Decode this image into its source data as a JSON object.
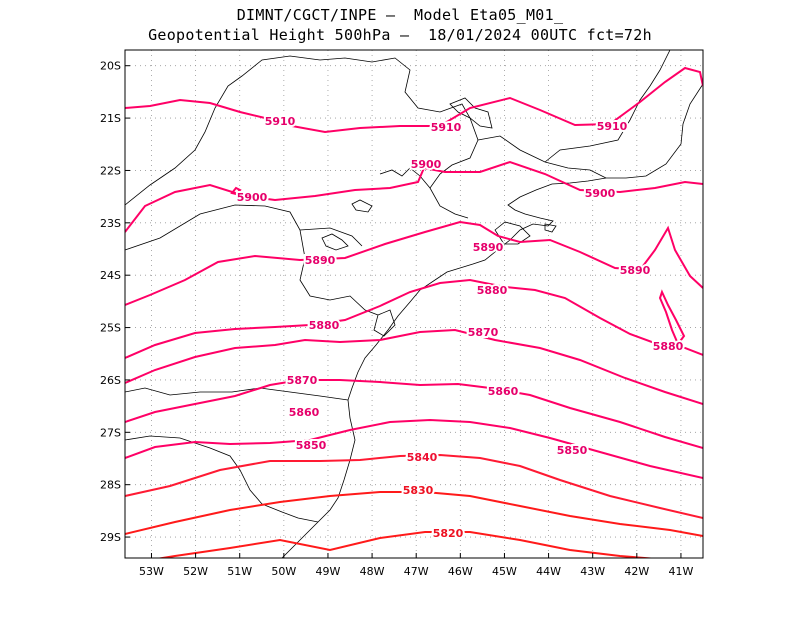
{
  "title": {
    "line1": "DIMNT/CGCT/INPE –  Model Eta05_M01_",
    "line2": "Geopotential Height 500hPa –  18/01/2024 00UTC fct=72h"
  },
  "map": {
    "lon_range": [
      -53.6,
      -40.5
    ],
    "lat_range": [
      -29.4,
      -19.7
    ],
    "x_ticks": [
      "53W",
      "52W",
      "51W",
      "50W",
      "49W",
      "48W",
      "47W",
      "46W",
      "45W",
      "44W",
      "43W",
      "42W",
      "41W"
    ],
    "y_ticks": [
      "20S",
      "21S",
      "22S",
      "23S",
      "24S",
      "25S",
      "26S",
      "27S",
      "28S",
      "29S"
    ],
    "grid": true,
    "contour_color": "#ff0066",
    "contour_color_low": "#ff1a1a",
    "coast_color": "#000000"
  },
  "contours": [
    {
      "value": 5910,
      "label": "5910"
    },
    {
      "value": 5900,
      "label": "5900"
    },
    {
      "value": 5890,
      "label": "5890"
    },
    {
      "value": 5880,
      "label": "5880"
    },
    {
      "value": 5870,
      "label": "5870"
    },
    {
      "value": 5860,
      "label": "5860"
    },
    {
      "value": 5850,
      "label": "5850"
    },
    {
      "value": 5840,
      "label": "5840"
    },
    {
      "value": 5830,
      "label": "5830"
    },
    {
      "value": 5820,
      "label": "5820"
    }
  ]
}
